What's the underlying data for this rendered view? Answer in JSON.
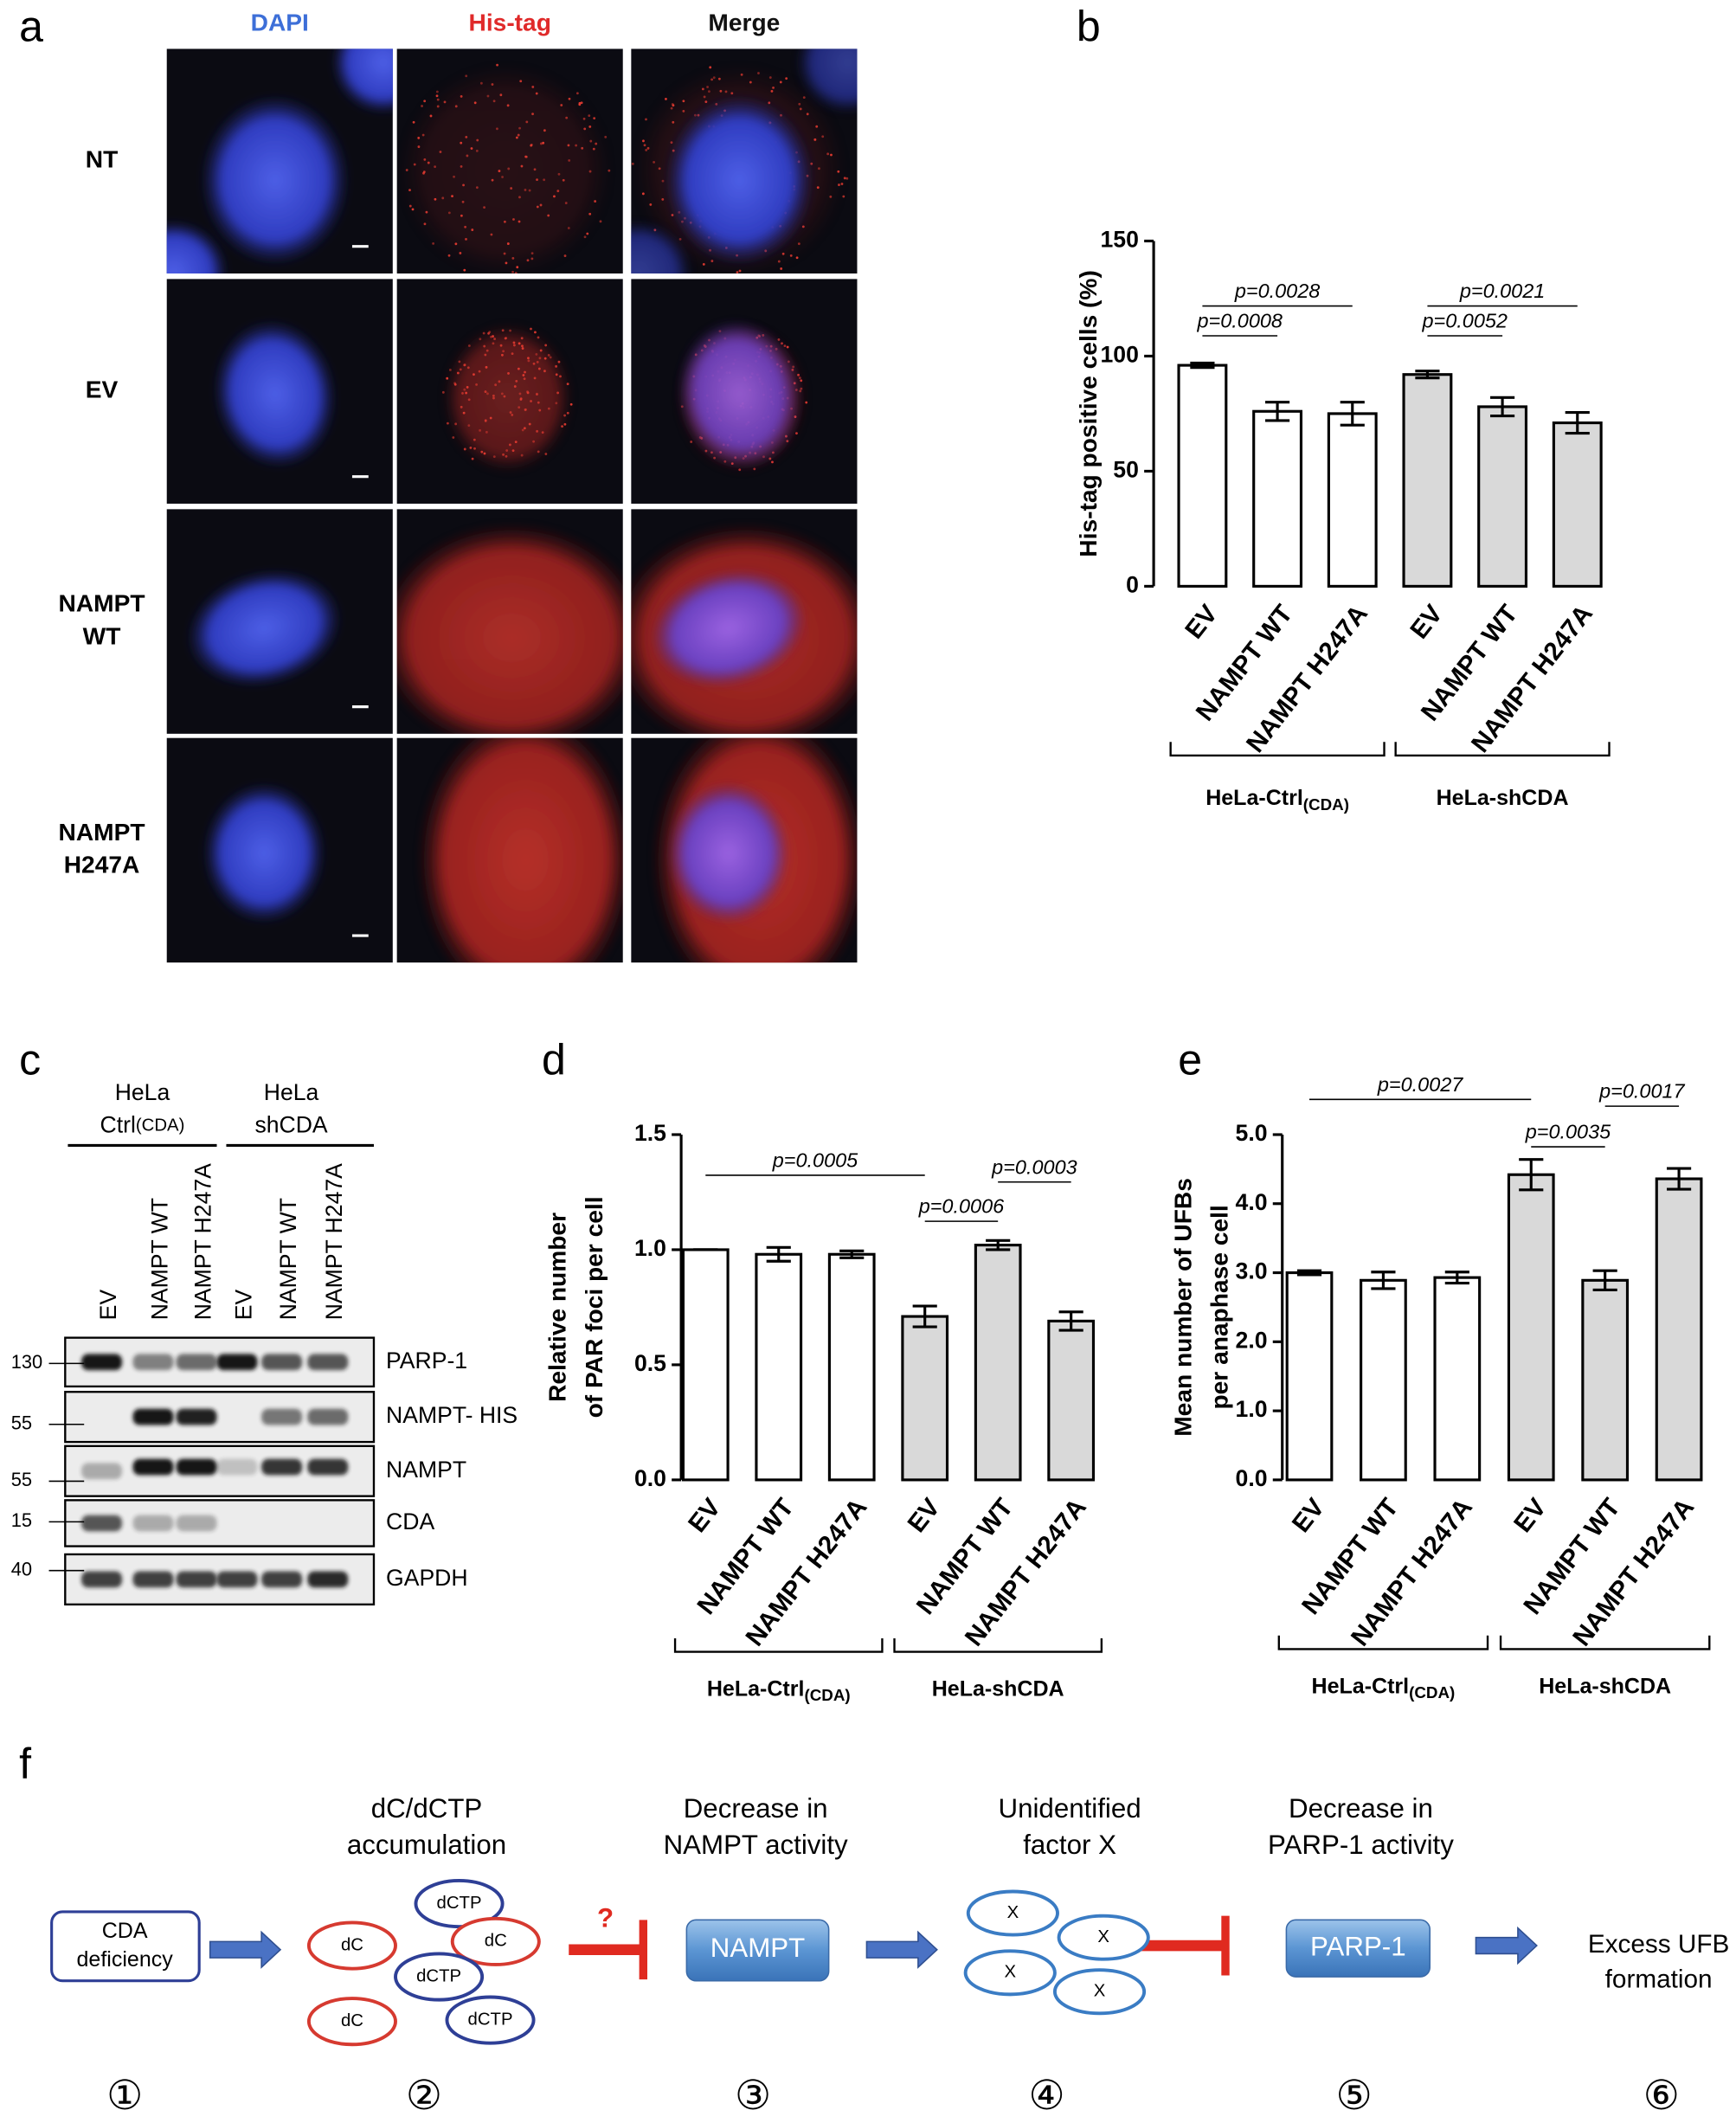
{
  "panel_a": {
    "label": "a",
    "columns": [
      "DAPI",
      "His-tag",
      "Merge"
    ],
    "rows": [
      [
        "NT"
      ],
      [
        "EV"
      ],
      [
        "NAMPT",
        "WT"
      ],
      [
        "NAMPT",
        "H247A"
      ]
    ]
  },
  "chart_data": [
    {
      "type": "bar",
      "label": "b",
      "ylabel": [
        "His-tag positive cells (%)"
      ],
      "categories": [
        "EV",
        "NAMPT WT",
        "NAMPT H247A",
        "EV",
        "NAMPT WT",
        "NAMPT H247A"
      ],
      "values": [
        96,
        76,
        75,
        92,
        78,
        71
      ],
      "errors": [
        1,
        4,
        5,
        1.5,
        4,
        4.5
      ],
      "colors": [
        "#ffffff",
        "#ffffff",
        "#ffffff",
        "#d9d9d9",
        "#d9d9d9",
        "#d9d9d9"
      ],
      "ylim": [
        0,
        150
      ],
      "yticks": [
        0,
        50,
        100,
        150
      ],
      "annotations": [
        "p=0.0028",
        "p=0.0008",
        "p=0.0021",
        "p=0.0052"
      ],
      "groups": [
        {
          "name": "HeLa-Ctrl",
          "sub": "(CDA)"
        },
        {
          "name": "HeLa-shCDA"
        }
      ]
    },
    {
      "type": "bar",
      "label": "d",
      "ylabel": [
        "Relative number",
        "of PAR foci per cell"
      ],
      "categories": [
        "EV",
        "NAMPT WT",
        "NAMPT H247A",
        "EV",
        "NAMPT WT",
        "NAMPT H247A"
      ],
      "values": [
        1.0,
        0.98,
        0.98,
        0.71,
        1.02,
        0.69
      ],
      "errors": [
        0,
        0.03,
        0.015,
        0.045,
        0.02,
        0.04
      ],
      "colors": [
        "#ffffff",
        "#ffffff",
        "#ffffff",
        "#d9d9d9",
        "#d9d9d9",
        "#d9d9d9"
      ],
      "ylim": [
        0,
        1.5
      ],
      "yticks": [
        {
          "value": 0,
          "label": "0.0"
        },
        0.5,
        {
          "value": 1,
          "label": "1.0"
        },
        1.5
      ],
      "annotations": [
        "p=0.0005",
        "p=0.0006",
        "p=0.0003"
      ],
      "groups": [
        {
          "name": "HeLa-Ctrl",
          "sub": "(CDA)"
        },
        {
          "name": "HeLa-shCDA"
        }
      ]
    },
    {
      "type": "bar",
      "label": "e",
      "ylabel": [
        "Mean number of UFBs",
        "per anaphase cell"
      ],
      "categories": [
        "EV",
        "NAMPT WT",
        "NAMPT H247A",
        "EV",
        "NAMPT WT",
        "NAMPT H247A"
      ],
      "values": [
        3.0,
        2.89,
        2.93,
        4.42,
        2.89,
        4.36
      ],
      "errors": [
        0.03,
        0.12,
        0.08,
        0.22,
        0.14,
        0.15
      ],
      "colors": [
        "#ffffff",
        "#ffffff",
        "#ffffff",
        "#d9d9d9",
        "#d9d9d9",
        "#d9d9d9"
      ],
      "ylim": [
        0,
        5
      ],
      "yticks": [
        {
          "value": 0,
          "label": "0.0"
        },
        {
          "value": 1,
          "label": "1.0"
        },
        {
          "value": 2,
          "label": "2.0"
        },
        {
          "value": 3,
          "label": "3.0"
        },
        {
          "value": 4,
          "label": "4.0"
        },
        {
          "value": 5,
          "label": "5.0"
        }
      ],
      "annotations": [
        "p=0.0027",
        "p=0.0035",
        "p=0.0017"
      ],
      "groups": [
        {
          "name": "HeLa-Ctrl",
          "sub": "(CDA)"
        },
        {
          "name": "HeLa-shCDA"
        }
      ]
    }
  ],
  "panel_c": {
    "label": "c",
    "groups": [
      {
        "lines": [
          "HeLa",
          "Ctrl"
        ],
        "sub": "(CDA)"
      },
      {
        "lines": [
          "HeLa",
          "shCDA"
        ]
      }
    ],
    "lanes": [
      "EV",
      "NAMPT WT",
      "NAMPT H247A",
      "EV",
      "NAMPT WT",
      "NAMPT H247A"
    ],
    "blots": [
      {
        "name": "PARP-1",
        "marker": 130
      },
      {
        "name": "NAMPT- HIS",
        "marker": 55
      },
      {
        "name": "NAMPT",
        "marker": 55
      },
      {
        "name": "CDA",
        "marker": 15
      },
      {
        "name": "GAPDH",
        "marker": 40
      }
    ]
  },
  "panel_f": {
    "label": "f",
    "start": [
      "CDA",
      "deficiency"
    ],
    "titles": [
      [
        "dC/dCTP",
        "accumulation"
      ],
      [
        "Decrease in",
        "NAMPT activity"
      ],
      [
        "Unidentified",
        "factor X"
      ],
      [
        "Decrease in",
        "PARP-1 activity"
      ]
    ],
    "molecules": [
      {
        "text": "dCTP",
        "color": "#2e3f96"
      },
      {
        "text": "dC",
        "color": "#d63a30"
      },
      {
        "text": "dC",
        "color": "#d63a30"
      },
      {
        "text": "dCTP",
        "color": "#2e3f96"
      },
      {
        "text": "dC",
        "color": "#d63a30"
      },
      {
        "text": "dCTP",
        "color": "#2e3f96"
      }
    ],
    "question": "?",
    "nampt": "NAMPT",
    "factors": [
      "X",
      "X",
      "X",
      "X"
    ],
    "parp": "PARP-1",
    "outcome": [
      "Excess UFB",
      "formation"
    ],
    "steps": [
      "①",
      "②",
      "③",
      "④",
      "⑤",
      "⑥"
    ]
  }
}
